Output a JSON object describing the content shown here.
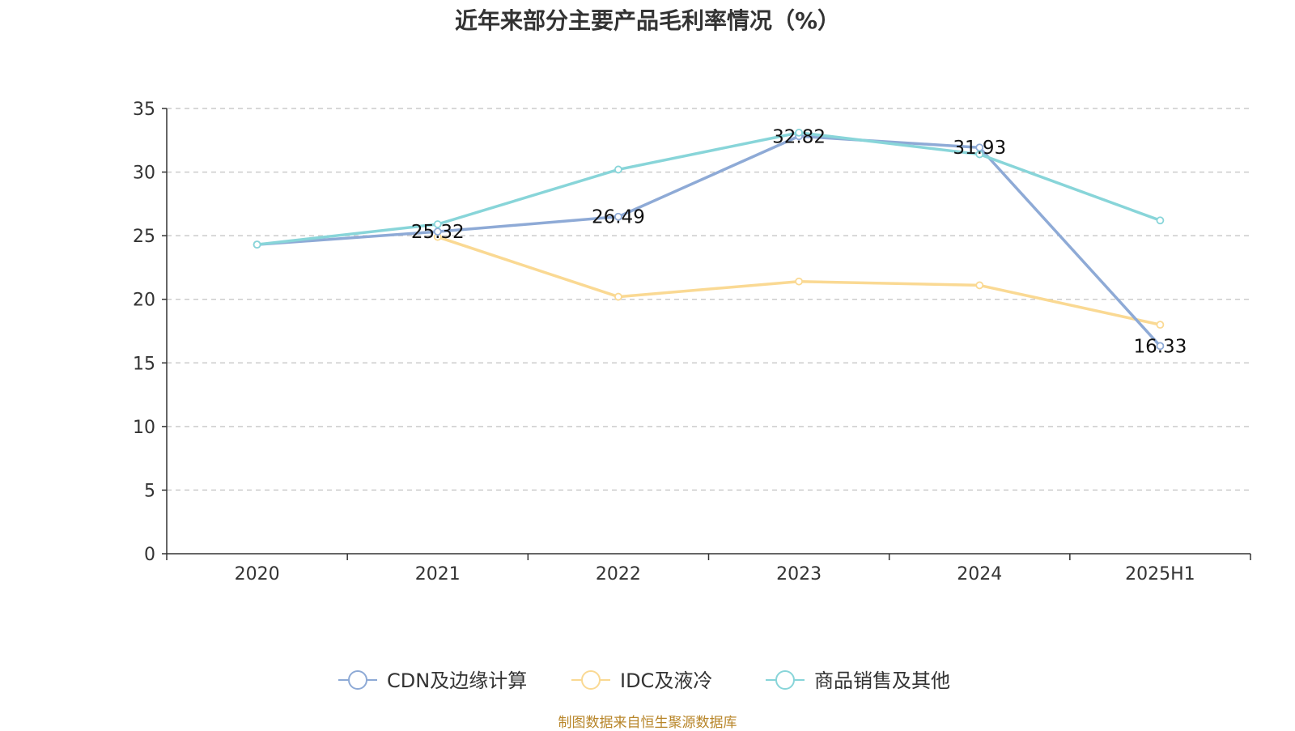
{
  "chart_data": {
    "type": "line",
    "title": "近年来部分主要产品毛利率情况（%）",
    "categories": [
      "2020",
      "2021",
      "2022",
      "2023",
      "2024",
      "2025H1"
    ],
    "ylim": [
      0,
      35
    ],
    "yticks": [
      0,
      5,
      10,
      15,
      20,
      25,
      30,
      35
    ],
    "grid": true,
    "grid_style": "dashed horizontal",
    "legend_position": "bottom",
    "series": [
      {
        "name": "CDN及边缘计算",
        "color": "#8eaad6",
        "values": [
          24.3,
          25.32,
          26.49,
          32.82,
          31.93,
          16.33
        ],
        "labels": [
          "",
          "25.32",
          "26.49",
          "32.82",
          "31.93",
          "16.33"
        ]
      },
      {
        "name": "IDC及液冷",
        "color": "#fad993",
        "values": [
          null,
          24.9,
          20.2,
          21.4,
          21.1,
          18.0
        ],
        "labels": [
          "",
          "",
          "",
          "",
          "",
          ""
        ]
      },
      {
        "name": "商品销售及其他",
        "color": "#88d5d9",
        "values": [
          24.3,
          25.9,
          30.2,
          33.1,
          31.4,
          26.2
        ],
        "labels": [
          "",
          "",
          "",
          "",
          "",
          ""
        ]
      }
    ],
    "source": "制图数据来自恒生聚源数据库"
  }
}
